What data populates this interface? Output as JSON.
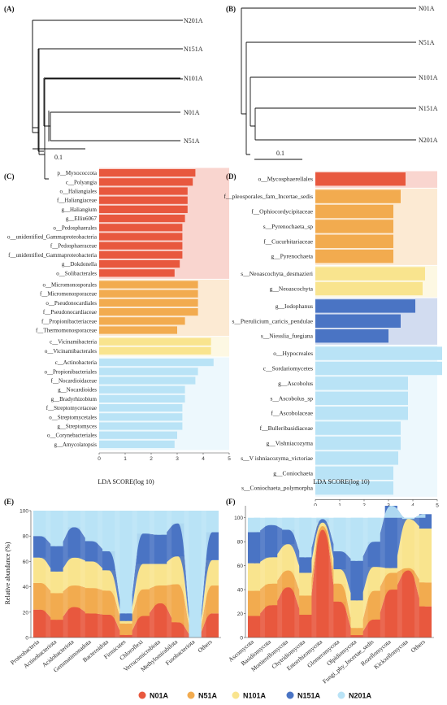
{
  "panels": [
    "(A)",
    "(B)",
    "(C)",
    "(D)",
    "(E)",
    "(F)"
  ],
  "tree_A": {
    "tips": [
      "N201A",
      "N151A",
      "N101A",
      "N01A",
      "N51A"
    ],
    "scale_label": "0.1"
  },
  "tree_B": {
    "tips": [
      "N01A",
      "N51A",
      "N101A",
      "N151A",
      "N201A"
    ],
    "scale_label": "0.1"
  },
  "colors": {
    "N01A": "#e8583e",
    "N51A": "#f2ab4f",
    "N101A": "#f9e48e",
    "N151A": "#4a74c4",
    "N201A": "#b9e3f6"
  },
  "legend": [
    {
      "label": "N01A",
      "key": "N01A"
    },
    {
      "label": "N51A",
      "key": "N51A"
    },
    {
      "label": "N101A",
      "key": "N101A"
    },
    {
      "label": "N151A",
      "key": "N151A"
    },
    {
      "label": "N201A",
      "key": "N201A"
    }
  ],
  "chart_data": [
    {
      "panel": "(C)",
      "type": "bar",
      "orientation": "horizontal",
      "xlabel": "LDA SCORE(log 10)",
      "xlim": [
        0,
        5
      ],
      "xticks": [
        0,
        1,
        2,
        3,
        4,
        5
      ],
      "groups": [
        {
          "group": "N01A",
          "items": [
            {
              "label": "p__Myxococcota",
              "value": 3.7
            },
            {
              "label": "c__Polyangia",
              "value": 3.6
            },
            {
              "label": "o__Haliangiales",
              "value": 3.4
            },
            {
              "label": "f__Haliangiaceae",
              "value": 3.4
            },
            {
              "label": "g__Haliangium",
              "value": 3.4
            },
            {
              "label": "g__Ellin6067",
              "value": 3.3
            },
            {
              "label": "o__Pedosphaerales",
              "value": 3.2
            },
            {
              "label": "o__unidentified_Gammaproteobacteria",
              "value": 3.2
            },
            {
              "label": "f__Pedosphaeraceae",
              "value": 3.2
            },
            {
              "label": "f__unidentified_Gammaproteobacteria",
              "value": 3.2
            },
            {
              "label": "g__Dokdonella",
              "value": 3.1
            },
            {
              "label": "o__Solibacterales",
              "value": 2.9
            }
          ]
        },
        {
          "group": "N51A",
          "items": [
            {
              "label": "o__Micromonosporales",
              "value": 3.8
            },
            {
              "label": "f__Micromonosporaceae",
              "value": 3.8
            },
            {
              "label": "o__Pseudonocardiales",
              "value": 3.8
            },
            {
              "label": "f__Pseudonocardiaceae",
              "value": 3.8
            },
            {
              "label": "f__Propionibacteriaceae",
              "value": 3.3
            },
            {
              "label": "f__Thermomonosporaceae",
              "value": 3.0
            }
          ]
        },
        {
          "group": "N101A",
          "items": [
            {
              "label": "c__Vicinamibacteria",
              "value": 4.3
            },
            {
              "label": "o__Vicinamibacterales",
              "value": 4.3
            }
          ]
        },
        {
          "group": "N201A",
          "items": [
            {
              "label": "c__Actinobacteria",
              "value": 4.4
            },
            {
              "label": "o__Propionibacteriales",
              "value": 3.8
            },
            {
              "label": "f__Nocardioidaceae",
              "value": 3.7
            },
            {
              "label": "g__Nocardioides",
              "value": 3.3
            },
            {
              "label": "g__Bradyrhizobium",
              "value": 3.3
            },
            {
              "label": "f__Streptomycetaceae",
              "value": 3.2
            },
            {
              "label": "o__Streptomycetales",
              "value": 3.2
            },
            {
              "label": "g__Streptomyces",
              "value": 3.2
            },
            {
              "label": "o__Corynebacteriales",
              "value": 3.0
            },
            {
              "label": "g__Amycolatopsis",
              "value": 2.9
            }
          ]
        }
      ]
    },
    {
      "panel": "(D)",
      "type": "bar",
      "orientation": "horizontal",
      "xlabel": "LDA SCORE(log 10)",
      "xlim": [
        0,
        5
      ],
      "xticks": [
        0,
        1,
        2,
        3,
        4,
        5
      ],
      "groups": [
        {
          "group": "N01A",
          "items": [
            {
              "label": "o__Mycosphaerellales",
              "value": 3.7
            }
          ]
        },
        {
          "group": "N51A",
          "items": [
            {
              "label": "f__pleosporales_fam_Incertae_sedis",
              "value": 3.5
            },
            {
              "label": "f__Ophiocordycipitaceae",
              "value": 3.2
            },
            {
              "label": "s__Pyrenochaeta_sp",
              "value": 3.2
            },
            {
              "label": "f__Cucurbitariaceae",
              "value": 3.2
            },
            {
              "label": "g__Pyrenochaeta",
              "value": 3.2
            }
          ]
        },
        {
          "group": "N101A",
          "items": [
            {
              "label": "s__Neoascochyta_desmazieri",
              "value": 4.5
            },
            {
              "label": "g__Neoascochyta",
              "value": 4.4
            }
          ]
        },
        {
          "group": "N151A",
          "items": [
            {
              "label": "g__Iodophanus",
              "value": 4.1
            },
            {
              "label": "s__Pterulicium_caricis_pendulae",
              "value": 3.5
            },
            {
              "label": "s__Niesslia_fuegiana",
              "value": 3.0
            }
          ]
        },
        {
          "group": "N201A",
          "items": [
            {
              "label": "o__Hypocreales",
              "value": 5.2
            },
            {
              "label": "c__Sordariomycetes",
              "value": 5.2
            },
            {
              "label": "g__Ascobolus",
              "value": 3.8
            },
            {
              "label": "s__Ascobolus_sp",
              "value": 3.8
            },
            {
              "label": "f__Ascobolaceae",
              "value": 3.8
            },
            {
              "label": "f__Bulleribasidiaceae",
              "value": 3.5
            },
            {
              "label": "g__Vishniacozyma",
              "value": 3.5
            },
            {
              "label": "s__V       ishniacozyma_victoriae",
              "value": 3.4
            },
            {
              "label": "g__Coniochaeta",
              "value": 3.2
            },
            {
              "label": "s__Coniochaeta_polymorpha",
              "value": 3.2
            }
          ]
        }
      ]
    },
    {
      "panel": "(E)",
      "type": "area",
      "stacked": true,
      "ylabel": "Relative abundance (%)",
      "ylim": [
        0,
        100
      ],
      "yticks": [
        0,
        20,
        40,
        60,
        80,
        100
      ],
      "categories": [
        "Proteobacteria",
        "Actinobacteriota",
        "Acidobacteriota",
        "Gemmatimonadota",
        "Bacteroidota",
        "Firmicutes",
        "Chloroflexi",
        "Verrucomicrobiota",
        "Methylomirabilota",
        "Fusobacteriota",
        "Others"
      ],
      "series": [
        {
          "name": "N01A",
          "values": [
            22,
            14,
            24,
            19,
            18,
            2,
            17,
            27,
            12,
            0,
            19
          ]
        },
        {
          "name": "N51A",
          "values": [
            21,
            21,
            17,
            20,
            19,
            9,
            21,
            14,
            30,
            0,
            22
          ]
        },
        {
          "name": "N101A",
          "values": [
            20,
            17,
            22,
            21,
            16,
            2,
            20,
            17,
            22,
            0,
            20
          ]
        },
        {
          "name": "N151A",
          "values": [
            17,
            20,
            24,
            16,
            15,
            6,
            24,
            23,
            26,
            0,
            22
          ]
        },
        {
          "name": "N201A",
          "values": [
            20,
            28,
            13,
            24,
            32,
            81,
            18,
            19,
            10,
            100,
            17
          ]
        }
      ]
    },
    {
      "panel": "(F)",
      "type": "area",
      "stacked": true,
      "ylabel": "",
      "ylim": [
        0,
        110
      ],
      "yticks": [
        0,
        20,
        40,
        60,
        80,
        100
      ],
      "categories": [
        "Ascomycota",
        "Basidiomycota",
        "Mortierellomycota",
        "Chytridiomycota",
        "Entorrhizomycota",
        "Glomeromycota",
        "Olpidiomycota",
        "Fungi_phy_Incertae_sedis",
        "Rozellomycota",
        "Kickxellomycota",
        "Others"
      ],
      "series": [
        {
          "name": "N01A",
          "values": [
            18,
            27,
            42,
            19,
            90,
            30,
            2,
            15,
            40,
            56,
            26
          ]
        },
        {
          "name": "N51A",
          "values": [
            21,
            18,
            14,
            16,
            3,
            15,
            6,
            24,
            14,
            2,
            20
          ]
        },
        {
          "name": "N101A",
          "values": [
            23,
            22,
            22,
            19,
            3,
            12,
            23,
            20,
            4,
            41,
            45
          ]
        },
        {
          "name": "N151A",
          "values": [
            26,
            27,
            12,
            13,
            3,
            15,
            33,
            21,
            52,
            0,
            12
          ]
        },
        {
          "name": "N201A",
          "values": [
            12,
            6,
            10,
            33,
            1,
            28,
            36,
            20,
            -10,
            1,
            -3
          ]
        }
      ]
    }
  ]
}
